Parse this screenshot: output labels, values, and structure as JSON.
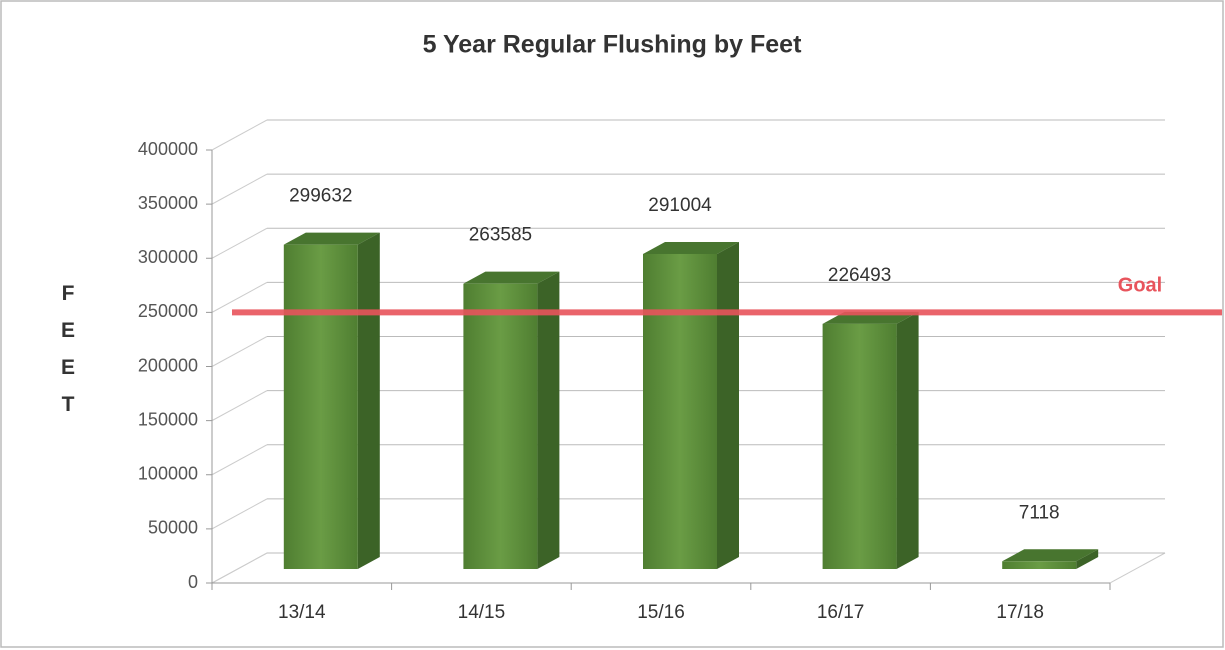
{
  "chart_data": {
    "type": "bar3d",
    "title": "5 Year Regular Flushing by Feet",
    "y_label": "FEET",
    "categories": [
      "13/14",
      "14/15",
      "15/16",
      "16/17",
      "17/18"
    ],
    "values": [
      299632,
      263585,
      291004,
      226493,
      7118
    ],
    "color": "#5b8c3a",
    "ylim": [
      0,
      400000
    ],
    "yticks": [
      0,
      50000,
      100000,
      150000,
      200000,
      250000,
      300000,
      350000,
      400000
    ],
    "grid": true,
    "goal": {
      "label": "Goal",
      "value": 250000,
      "color": "#e8545c"
    }
  }
}
